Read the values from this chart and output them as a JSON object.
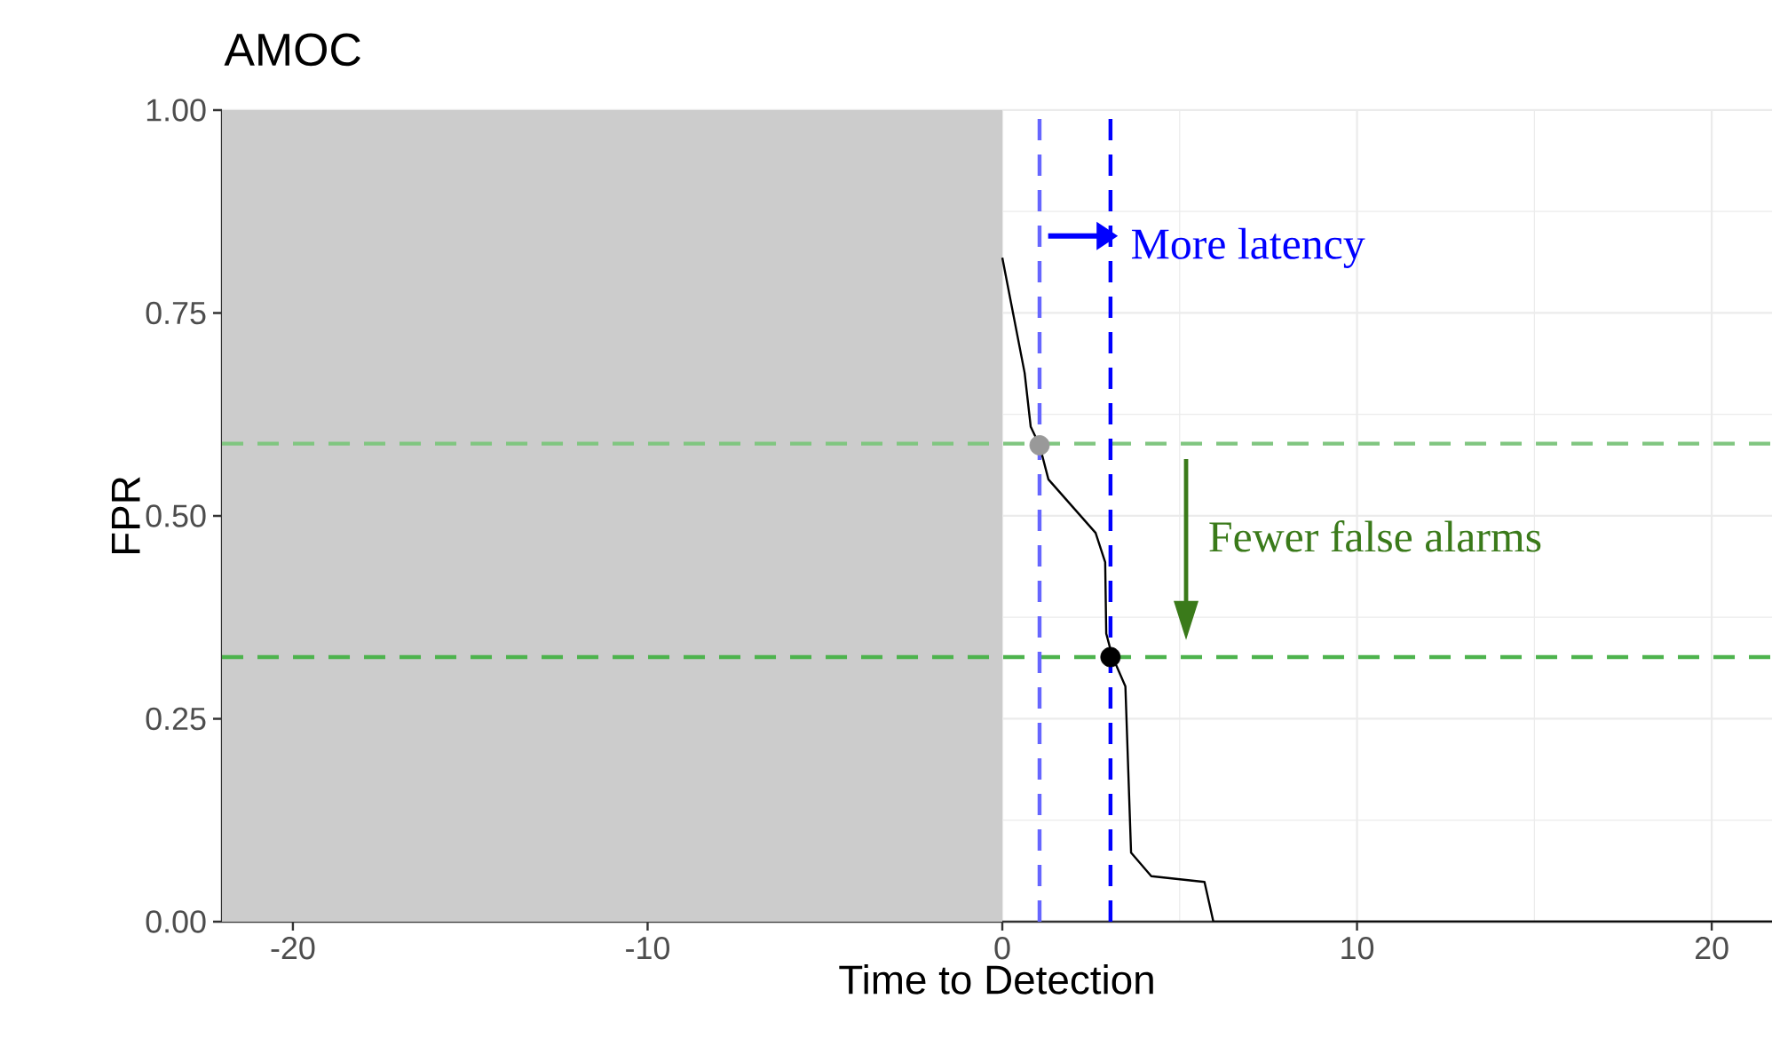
{
  "chart_data": {
    "type": "line",
    "title": "AMOC",
    "xlabel": "Time to Detection",
    "ylabel": "FPR",
    "xlim": [
      -22,
      21.7
    ],
    "ylim": [
      0,
      1
    ],
    "xticks": [
      -20,
      -10,
      0,
      10,
      20
    ],
    "yticks": [
      {
        "value": 0,
        "label": "0.00"
      },
      {
        "value": 0.25,
        "label": "0.25"
      },
      {
        "value": 0.5,
        "label": "0.50"
      },
      {
        "value": 0.75,
        "label": "0.75"
      },
      {
        "value": 1,
        "label": "1.00"
      }
    ],
    "grid": true,
    "series": [
      {
        "color": "#000000",
        "marker": "none",
        "x": [
          0.0,
          0.63,
          0.8,
          1.05,
          1.3,
          2.63,
          2.9,
          2.93,
          3.1,
          3.47,
          3.63,
          4.2,
          5.7,
          5.95,
          21.7
        ],
        "values": [
          0.818,
          0.676,
          0.61,
          0.587,
          0.545,
          0.479,
          0.443,
          0.355,
          0.327,
          0.29,
          0.085,
          0.056,
          0.049,
          0.0,
          0.0
        ]
      },
      {
        "type": "scatter",
        "marker": "circle",
        "colors": [
          "#999999",
          "#000000"
        ],
        "x": [
          1.05,
          3.05
        ],
        "values": [
          0.587,
          0.326
        ]
      }
    ],
    "ref_lines": [
      {
        "axis": "y",
        "value": 0.589,
        "color": "#80c680",
        "line_style": "dashed"
      },
      {
        "axis": "y",
        "value": 0.326,
        "color": "#4db34d",
        "line_style": "dashed"
      },
      {
        "axis": "x",
        "value": 1.05,
        "color": "#6666ff",
        "line_style": "dashed"
      },
      {
        "axis": "x",
        "value": 3.05,
        "color": "#0000ff",
        "line_style": "dashed"
      }
    ],
    "bands": [
      {
        "axis": "x",
        "from": -22,
        "to": 0,
        "color": "#cccccc"
      }
    ],
    "annotations": [
      "More latency",
      "Fewer false alarms"
    ]
  }
}
